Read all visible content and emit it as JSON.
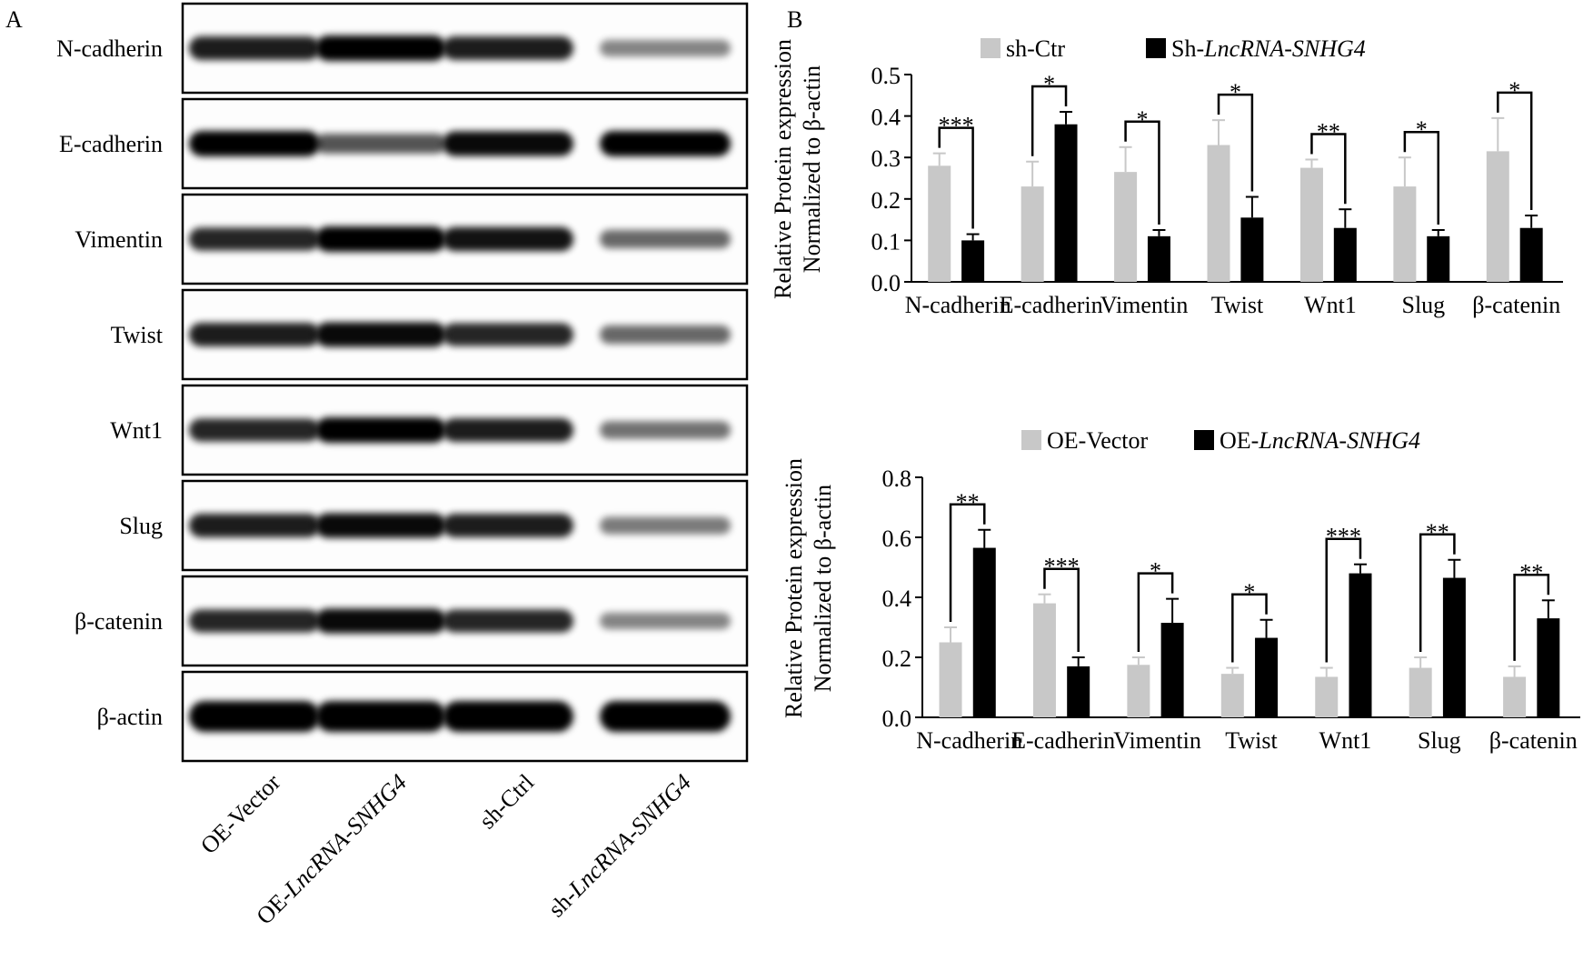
{
  "panel_a": {
    "label": "A",
    "proteins": [
      "N-cadherin",
      "E-cadherin",
      "Vimentin",
      "Twist",
      "Wnt1",
      "Slug",
      "β-catenin",
      "β-actin"
    ],
    "lanes": [
      "OE-Vector",
      "OE-LncRNA-SNHG4",
      "sh-Ctrl",
      "sh-LncRNA-SNHG4"
    ]
  },
  "chart_data": [
    {
      "type": "bar",
      "panel_label": "B",
      "y_label": [
        "Relative Protein expression",
        "Normalized to β-actin"
      ],
      "categories": [
        "N-cadherin",
        "E-cadherin",
        "Vimentin",
        "Twist",
        "Wnt1",
        "Slug",
        "β-catenin"
      ],
      "series": [
        {
          "name": "sh-Ctr",
          "color": "#c8c8c8",
          "values": [
            0.28,
            0.23,
            0.265,
            0.33,
            0.275,
            0.23,
            0.315
          ],
          "errors": [
            0.03,
            0.06,
            0.06,
            0.06,
            0.02,
            0.07,
            0.08
          ]
        },
        {
          "name": "Sh-LncRNA-SNHG4",
          "color": "#000000",
          "values": [
            0.1,
            0.38,
            0.11,
            0.155,
            0.13,
            0.11,
            0.13
          ],
          "errors": [
            0.015,
            0.03,
            0.015,
            0.05,
            0.045,
            0.015,
            0.03
          ]
        }
      ],
      "significance": [
        "***",
        "*",
        "*",
        "*",
        "**",
        "*",
        "*"
      ],
      "ylim": [
        0,
        0.5
      ],
      "yticks": [
        {
          "value": 0,
          "label": "0.0"
        },
        0.1,
        0.2,
        0.3,
        0.4,
        0.5
      ],
      "legend": "top"
    },
    {
      "type": "bar",
      "y_label": [
        "Relative Protein expression",
        "Normalized to β-actin"
      ],
      "categories": [
        "N-cadherin",
        "E-cadherin",
        "Vimentin",
        "Twist",
        "Wnt1",
        "Slug",
        "β-catenin"
      ],
      "series": [
        {
          "name": "OE-Vector",
          "color": "#c8c8c8",
          "values": [
            0.25,
            0.38,
            0.175,
            0.145,
            0.135,
            0.165,
            0.135
          ],
          "errors": [
            0.05,
            0.03,
            0.025,
            0.02,
            0.03,
            0.035,
            0.035
          ]
        },
        {
          "name": "OE-LncRNA-SNHG4",
          "color": "#000000",
          "values": [
            0.565,
            0.17,
            0.315,
            0.265,
            0.48,
            0.465,
            0.33
          ],
          "errors": [
            0.06,
            0.03,
            0.08,
            0.06,
            0.03,
            0.06,
            0.06
          ]
        }
      ],
      "significance": [
        "**",
        "***",
        "*",
        "*",
        "***",
        "**",
        "**"
      ],
      "ylim": [
        0,
        0.8
      ],
      "yticks": [
        {
          "value": 0,
          "label": "0.0"
        },
        0.2,
        0.4,
        0.6,
        0.8
      ],
      "legend": "top"
    }
  ]
}
